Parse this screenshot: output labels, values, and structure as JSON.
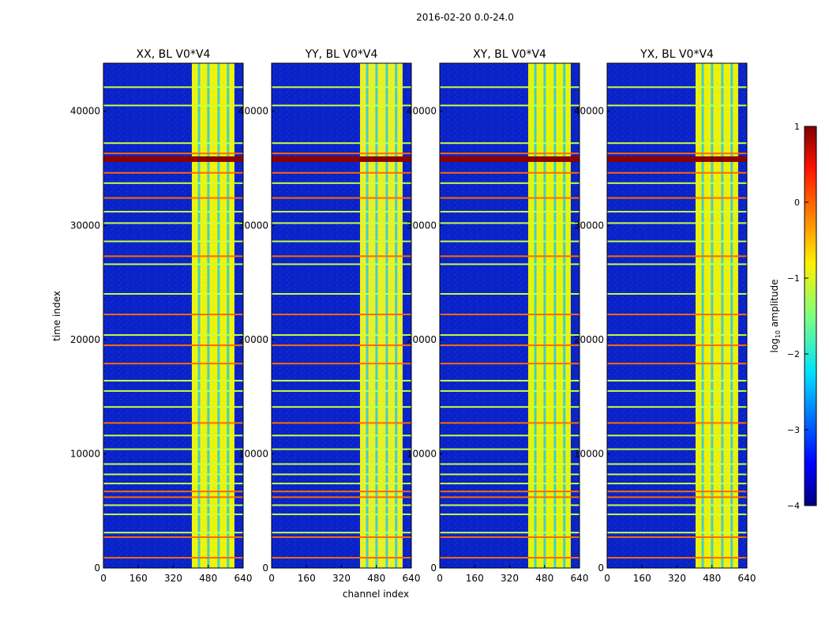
{
  "chart_data": {
    "type": "heatmap",
    "suptitle": "2016-02-20 0.0-24.0",
    "xlabel": "channel index",
    "ylabel": "time index",
    "xlim": [
      0,
      640
    ],
    "ylim": [
      0,
      44200
    ],
    "xticks": [
      "0",
      "160",
      "320",
      "480",
      "640"
    ],
    "yticks": [
      "0",
      "10000",
      "20000",
      "30000",
      "40000"
    ],
    "panels": [
      {
        "title": "XX, BL V0*V4",
        "band_tint": "#f4f400"
      },
      {
        "title": "YY, BL V0*V4",
        "band_tint": "#f0f020"
      },
      {
        "title": "XY, BL V0*V4",
        "band_tint": "#ecf400"
      },
      {
        "title": "YX, BL V0*V4",
        "band_tint": "#f4f000"
      }
    ],
    "strong_channel_range": [
      405,
      600
    ],
    "rfi_rows": [
      {
        "t": 900,
        "level": "warm"
      },
      {
        "t": 2700,
        "level": "warm"
      },
      {
        "t": 3100,
        "level": "mid"
      },
      {
        "t": 4700,
        "level": "mid"
      },
      {
        "t": 5500,
        "level": "mid"
      },
      {
        "t": 6200,
        "level": "warm"
      },
      {
        "t": 6700,
        "level": "warm"
      },
      {
        "t": 7400,
        "level": "mid"
      },
      {
        "t": 8200,
        "level": "mid"
      },
      {
        "t": 9100,
        "level": "mid"
      },
      {
        "t": 10400,
        "level": "mid"
      },
      {
        "t": 11600,
        "level": "mid"
      },
      {
        "t": 12700,
        "level": "warm"
      },
      {
        "t": 14100,
        "level": "mid"
      },
      {
        "t": 15500,
        "level": "mid"
      },
      {
        "t": 16400,
        "level": "mid"
      },
      {
        "t": 17900,
        "level": "warm"
      },
      {
        "t": 19500,
        "level": "warm"
      },
      {
        "t": 20400,
        "level": "mid"
      },
      {
        "t": 22200,
        "level": "warm"
      },
      {
        "t": 24000,
        "level": "mid"
      },
      {
        "t": 26600,
        "level": "mid"
      },
      {
        "t": 27300,
        "level": "warm"
      },
      {
        "t": 28600,
        "level": "mid"
      },
      {
        "t": 30200,
        "level": "mid"
      },
      {
        "t": 31200,
        "level": "mid"
      },
      {
        "t": 32400,
        "level": "warm"
      },
      {
        "t": 33700,
        "level": "mid"
      },
      {
        "t": 34600,
        "level": "warm"
      },
      {
        "t": 35800,
        "level": "hot"
      },
      {
        "t": 36300,
        "level": "warm"
      },
      {
        "t": 37200,
        "level": "mid"
      },
      {
        "t": 40500,
        "level": "mid"
      },
      {
        "t": 42100,
        "level": "mid"
      }
    ],
    "colorbar": {
      "label_prefix": "log",
      "label_sub": "10",
      "label_suffix": " amplitude",
      "min": -4,
      "max": 1,
      "ticks": [
        "1",
        "0",
        "−1",
        "−2",
        "−3",
        "−4"
      ],
      "tick_values": [
        1,
        0,
        -1,
        -2,
        -3,
        -4
      ],
      "colormap": "jet"
    }
  }
}
